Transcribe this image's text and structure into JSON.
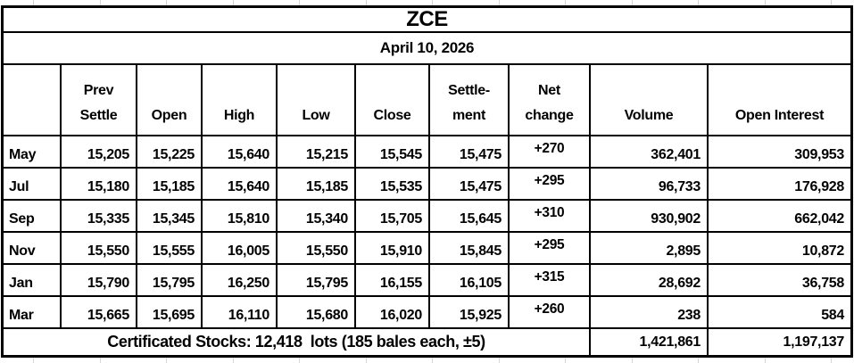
{
  "title": "ZCE",
  "date": "April 10, 2026",
  "columns": [
    "",
    "Prev\nSettle",
    "Open",
    "High",
    "Low",
    "Close",
    "Settle-\nment",
    "Net\nchange",
    "Volume",
    "Open Interest"
  ],
  "column_keys": [
    "month",
    "prev-settle",
    "open",
    "high",
    "low",
    "close",
    "settlement",
    "net-change",
    "volume",
    "open-interest"
  ],
  "rows": [
    {
      "month": "May",
      "cells": [
        "15,205",
        "15,225",
        "15,640",
        "15,215",
        "15,545",
        "15,475",
        "+270",
        "362,401",
        "309,953"
      ]
    },
    {
      "month": "Jul",
      "cells": [
        "15,180",
        "15,185",
        "15,640",
        "15,185",
        "15,535",
        "15,475",
        "+295",
        "96,733",
        "176,928"
      ]
    },
    {
      "month": "Sep",
      "cells": [
        "15,335",
        "15,345",
        "15,810",
        "15,340",
        "15,705",
        "15,645",
        "+310",
        "930,902",
        "662,042"
      ]
    },
    {
      "month": "Nov",
      "cells": [
        "15,550",
        "15,555",
        "16,005",
        "15,550",
        "15,910",
        "15,845",
        "+295",
        "2,895",
        "10,872"
      ]
    },
    {
      "month": "Jan",
      "cells": [
        "15,790",
        "15,795",
        "16,250",
        "15,795",
        "16,155",
        "16,105",
        "+315",
        "28,692",
        "36,758"
      ]
    },
    {
      "month": "Mar",
      "cells": [
        "15,665",
        "15,695",
        "16,110",
        "15,680",
        "16,020",
        "15,925",
        "+260",
        "238",
        "584"
      ]
    }
  ],
  "footer": {
    "certificated_stocks": "Certificated Stocks: 12,418  lots (185 bales each, ±5)",
    "volume_total": "1,421,861",
    "open_interest_total": "1,197,137"
  },
  "colors": {
    "border": "#000000",
    "text": "#000000",
    "background": "#ffffff",
    "gridline": "#d6d6d6"
  }
}
